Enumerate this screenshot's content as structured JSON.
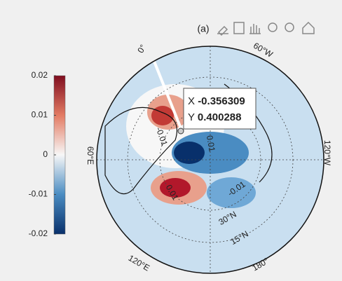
{
  "title": "(a)",
  "map": {
    "lon_labels": [
      "0°",
      "60°W",
      "120°W",
      "180°",
      "120°E",
      "60°E"
    ],
    "lat_labels": [
      "15°N",
      "30°N"
    ],
    "contour_labels": [
      "-0.01",
      "0.01",
      "-0.01",
      "0.01"
    ]
  },
  "colorbar": {
    "limits": [
      -0.02,
      0.02
    ],
    "ticks": [
      0.02,
      0.01,
      0,
      -0.01,
      -0.02
    ]
  },
  "datatip": {
    "x_label": "X",
    "x": -0.356309,
    "y_label": "Y",
    "y": 0.400288
  }
}
